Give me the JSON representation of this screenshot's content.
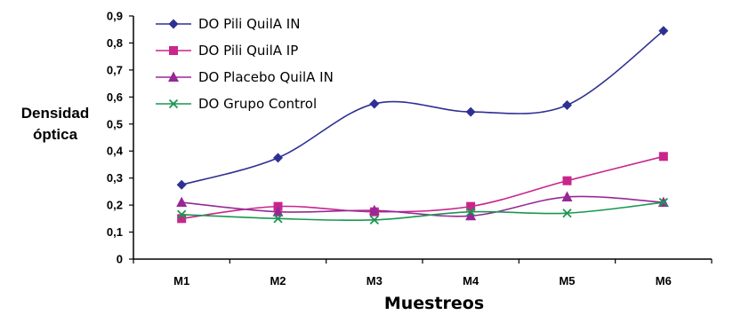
{
  "chart_data": {
    "type": "line",
    "xlabel": "Muestreos",
    "ylabel": [
      "Densidad",
      "óptica"
    ],
    "categories": [
      "M1",
      "M2",
      "M3",
      "M4",
      "M5",
      "M6"
    ],
    "ylim": [
      0,
      0.9
    ],
    "yticks": [
      0,
      0.1,
      0.2,
      0.3,
      0.4,
      0.5,
      0.6,
      0.7,
      0.8,
      0.9
    ],
    "ytick_labels": [
      "0",
      "0,1",
      "0,2",
      "0,3",
      "0,4",
      "0,5",
      "0,6",
      "0,7",
      "0,8",
      "0,9"
    ],
    "legend_position": "top-left",
    "grid": false,
    "series": [
      {
        "name": "DO Pili QuilA IN",
        "color": "#2e3192",
        "marker": "diamond",
        "values": [
          0.275,
          0.375,
          0.575,
          0.545,
          0.57,
          0.845
        ]
      },
      {
        "name": "DO Pili QuilA IP",
        "color": "#c8268c",
        "marker": "square",
        "values": [
          0.15,
          0.195,
          0.175,
          0.195,
          0.29,
          0.38
        ]
      },
      {
        "name": "DO Placebo QuilA IN",
        "color": "#962896",
        "marker": "triangle",
        "values": [
          0.21,
          0.175,
          0.18,
          0.16,
          0.23,
          0.21
        ]
      },
      {
        "name": "DO Grupo Control",
        "color": "#1a9650",
        "marker": "x",
        "values": [
          0.165,
          0.15,
          0.145,
          0.175,
          0.17,
          0.21
        ]
      }
    ]
  }
}
